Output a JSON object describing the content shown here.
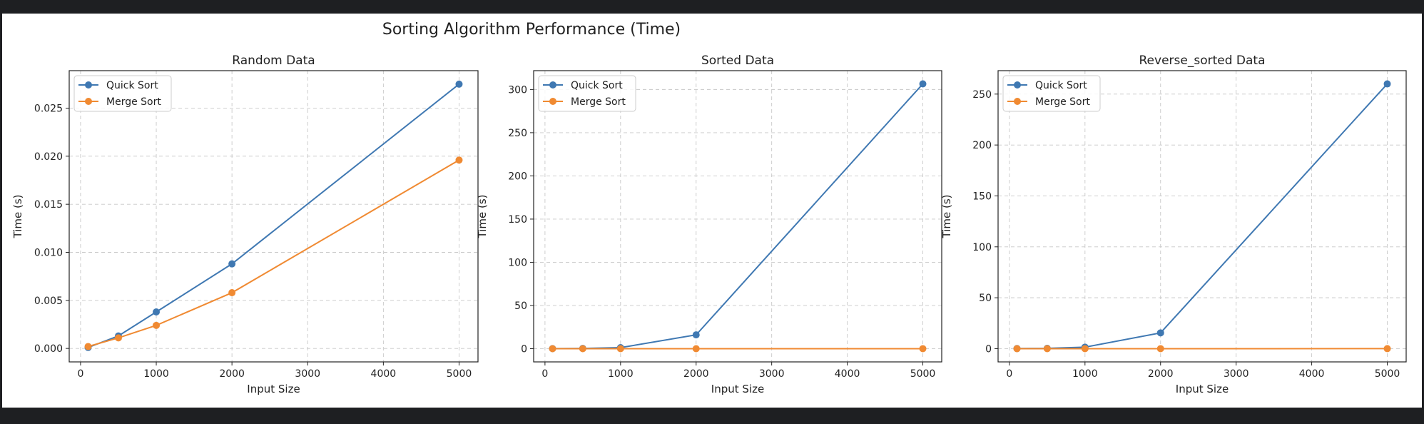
{
  "figure_title": "Sorting Algorithm Performance (Time)",
  "colors": {
    "quick_sort": "#3f78b2",
    "merge_sort": "#f08a32",
    "window_background": "#1e1f22",
    "panel_background": "#ffffff",
    "grid": "#c8c8c8",
    "axes": "#222222"
  },
  "chart_data": [
    {
      "type": "line",
      "title": "Random Data",
      "xlabel": "Input Size",
      "ylabel": "Time (s)",
      "x": [
        100,
        500,
        1000,
        2000,
        5000
      ],
      "xlim": [
        -150,
        5250
      ],
      "ylim": [
        -0.0014,
        0.0289
      ],
      "xticks": [
        0,
        1000,
        2000,
        3000,
        4000,
        5000
      ],
      "yticks": [
        0.0,
        0.005,
        0.01,
        0.015,
        0.02,
        0.025
      ],
      "ytick_labels": [
        "0.000",
        "0.005",
        "0.010",
        "0.015",
        "0.020",
        "0.025"
      ],
      "grid": true,
      "legend_position": "upper-left",
      "series": [
        {
          "name": "Quick Sort",
          "values": [
            0.0001,
            0.0013,
            0.0038,
            0.0088,
            0.0275
          ]
        },
        {
          "name": "Merge Sort",
          "values": [
            0.0002,
            0.0011,
            0.0024,
            0.0058,
            0.0196
          ]
        }
      ]
    },
    {
      "type": "line",
      "title": "Sorted Data",
      "xlabel": "Input Size",
      "ylabel": "Time (s)",
      "x": [
        100,
        500,
        1000,
        2000,
        5000
      ],
      "xlim": [
        -150,
        5250
      ],
      "ylim": [
        -15.3,
        321.8
      ],
      "xticks": [
        0,
        1000,
        2000,
        3000,
        4000,
        5000
      ],
      "yticks": [
        0,
        50,
        100,
        150,
        200,
        250,
        300
      ],
      "ytick_labels": [
        "0",
        "50",
        "100",
        "150",
        "200",
        "250",
        "300"
      ],
      "grid": true,
      "legend_position": "upper-left",
      "series": [
        {
          "name": "Quick Sort",
          "values": [
            0.1,
            0.3,
            1.2,
            16,
            306.5
          ]
        },
        {
          "name": "Merge Sort",
          "values": [
            0.0,
            0.0,
            0.0,
            0.0,
            0.02
          ]
        }
      ]
    },
    {
      "type": "line",
      "title": "Reverse_sorted Data",
      "xlabel": "Input Size",
      "ylabel": "Time (s)",
      "x": [
        100,
        500,
        1000,
        2000,
        5000
      ],
      "xlim": [
        -150,
        5250
      ],
      "ylim": [
        -13,
        273
      ],
      "xticks": [
        0,
        1000,
        2000,
        3000,
        4000,
        5000
      ],
      "yticks": [
        0,
        50,
        100,
        150,
        200,
        250
      ],
      "ytick_labels": [
        "0",
        "50",
        "100",
        "150",
        "200",
        "250"
      ],
      "grid": true,
      "legend_position": "upper-left",
      "series": [
        {
          "name": "Quick Sort",
          "values": [
            0.1,
            0.3,
            1.5,
            15.5,
            260
          ]
        },
        {
          "name": "Merge Sort",
          "values": [
            0.0,
            0.0,
            0.0,
            0.0,
            0.02
          ]
        }
      ]
    }
  ]
}
